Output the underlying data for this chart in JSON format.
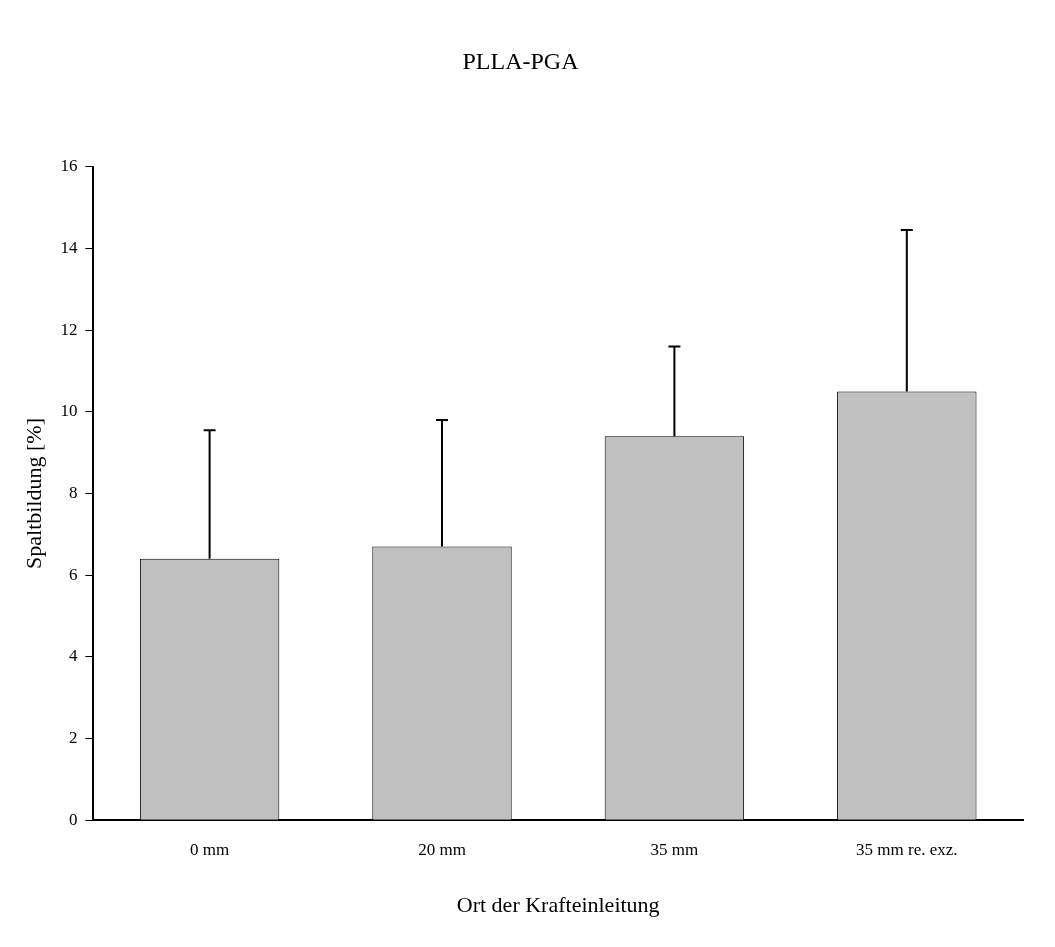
{
  "chart_data": {
    "type": "bar",
    "title": "PLLA-PGA",
    "xlabel": "Ort der Krafteinleitung",
    "ylabel": "Spaltbildung [%]",
    "categories": [
      "0 mm",
      "20 mm",
      "35 mm",
      "35 mm re. exz."
    ],
    "values": [
      6.4,
      6.7,
      9.4,
      10.5
    ],
    "errors": [
      [
        6.4,
        9.55
      ],
      [
        6.7,
        9.8
      ],
      [
        9.4,
        11.6
      ],
      [
        10.5,
        14.45
      ]
    ],
    "color": "#c0c0c0",
    "ylim": [
      0,
      16
    ],
    "yticks": [
      0,
      2,
      4,
      6,
      8,
      10,
      12,
      14,
      16
    ],
    "grid": false,
    "legend": false
  }
}
